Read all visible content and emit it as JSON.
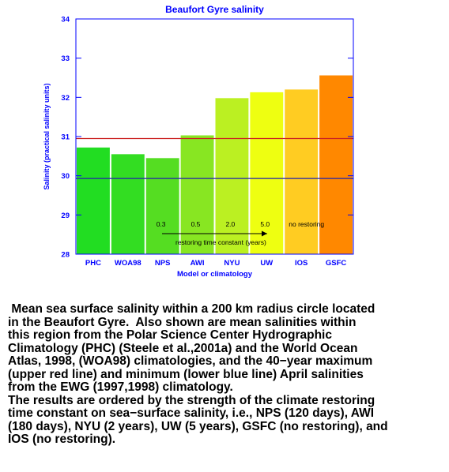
{
  "chart_data": {
    "type": "bar",
    "title": "Beaufort Gyre salinity",
    "xlabel": "Model or climatology",
    "ylabel": "Salinity (practical salinity units)",
    "ylim": [
      28,
      34
    ],
    "yticks": [
      "28",
      "29",
      "30",
      "31",
      "32",
      "33",
      "34"
    ],
    "categories": [
      "PHC",
      "WOA98",
      "NPS",
      "AWI",
      "NYU",
      "UW",
      "IOS",
      "GSFC"
    ],
    "values": [
      30.72,
      30.55,
      30.45,
      31.03,
      31.98,
      32.13,
      32.2,
      32.56
    ],
    "bar_colors": [
      "#22dd22",
      "#33dd22",
      "#55dd22",
      "#88e622",
      "#bbf022",
      "#eeff11",
      "#ffcc22",
      "#ff8800"
    ],
    "reference_lines": [
      {
        "value": 30.95,
        "color": "#cc2222"
      },
      {
        "value": 29.93,
        "color": "#2222aa"
      }
    ],
    "restoring_labels": [
      {
        "category": "NPS",
        "text": "0.3"
      },
      {
        "category": "AWI",
        "text": "0.5"
      },
      {
        "category": "NYU",
        "text": "2.0"
      },
      {
        "category": "UW",
        "text": "5.0"
      },
      {
        "category": "IOS",
        "text": "no restoring"
      }
    ],
    "arrow_label": "restoring time constant (years)",
    "axis_color": "#0000ff",
    "grid": false
  },
  "caption": [
    " Mean sea surface salinity within a 200 km radius circle located\nin the Beaufort Gyre.  Also shown are mean salinities within\nthis region from the Polar Science Center Hydrographic\nClimatology (PHC) (Steele et al.,2001a) and the World Ocean\nAtlas, 1998, (WOA98) climatologies, and the 40−year maximum\n(upper red line) and minimum (lower blue line) April salinities\nfrom the EWG (1997,1998) climatology.",
    "The results are ordered by the strength of the climate restoring\ntime constant on sea−surface salinity, i.e., NPS (120 days), AWI\n(180 days), NYU (2 years), UW (5 years), GSFC (no restoring), and\nIOS (no restoring)."
  ]
}
